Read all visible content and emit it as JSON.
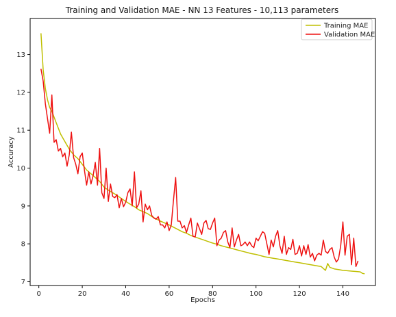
{
  "chart_data": {
    "type": "line",
    "title": "Training and Validation MAE - NN 13 Features - 10,113 parameters",
    "xlabel": "Epochs",
    "ylabel": "Accuracy",
    "xlim": [
      -4,
      155
    ],
    "ylim": [
      6.9,
      13.95
    ],
    "xticks": [
      0,
      20,
      40,
      60,
      80,
      100,
      120,
      140
    ],
    "yticks": [
      7,
      8,
      9,
      10,
      11,
      12,
      13
    ],
    "grid": false,
    "legend_position": "top-right",
    "series": [
      {
        "name": "Training MAE",
        "color": "#bfbf00",
        "points": [
          [
            1,
            13.56
          ],
          [
            2,
            12.6
          ],
          [
            3,
            12.1
          ],
          [
            4,
            11.8
          ],
          [
            5,
            11.6
          ],
          [
            6,
            11.5
          ],
          [
            8,
            11.2
          ],
          [
            10,
            10.9
          ],
          [
            12,
            10.7
          ],
          [
            14,
            10.5
          ],
          [
            16,
            10.35
          ],
          [
            18,
            10.25
          ],
          [
            20,
            10.1
          ],
          [
            22,
            9.95
          ],
          [
            24,
            9.85
          ],
          [
            26,
            9.75
          ],
          [
            28,
            9.65
          ],
          [
            30,
            9.5
          ],
          [
            32,
            9.42
          ],
          [
            34,
            9.35
          ],
          [
            36,
            9.28
          ],
          [
            38,
            9.2
          ],
          [
            40,
            9.12
          ],
          [
            42,
            9.05
          ],
          [
            44,
            8.98
          ],
          [
            46,
            8.9
          ],
          [
            48,
            8.85
          ],
          [
            50,
            8.8
          ],
          [
            52,
            8.72
          ],
          [
            54,
            8.66
          ],
          [
            56,
            8.6
          ],
          [
            58,
            8.55
          ],
          [
            60,
            8.5
          ],
          [
            62,
            8.44
          ],
          [
            64,
            8.38
          ],
          [
            66,
            8.32
          ],
          [
            68,
            8.28
          ],
          [
            70,
            8.22
          ],
          [
            72,
            8.18
          ],
          [
            74,
            8.14
          ],
          [
            76,
            8.1
          ],
          [
            78,
            8.06
          ],
          [
            80,
            8.02
          ],
          [
            82,
            7.99
          ],
          [
            84,
            7.95
          ],
          [
            86,
            7.92
          ],
          [
            88,
            7.89
          ],
          [
            90,
            7.86
          ],
          [
            92,
            7.83
          ],
          [
            94,
            7.8
          ],
          [
            96,
            7.77
          ],
          [
            98,
            7.74
          ],
          [
            100,
            7.72
          ],
          [
            102,
            7.69
          ],
          [
            104,
            7.66
          ],
          [
            106,
            7.64
          ],
          [
            108,
            7.62
          ],
          [
            110,
            7.6
          ],
          [
            112,
            7.58
          ],
          [
            114,
            7.56
          ],
          [
            116,
            7.54
          ],
          [
            118,
            7.52
          ],
          [
            120,
            7.5
          ],
          [
            122,
            7.48
          ],
          [
            124,
            7.46
          ],
          [
            126,
            7.44
          ],
          [
            128,
            7.42
          ],
          [
            130,
            7.4
          ],
          [
            132,
            7.3
          ],
          [
            133,
            7.48
          ],
          [
            134,
            7.38
          ],
          [
            136,
            7.34
          ],
          [
            138,
            7.32
          ],
          [
            140,
            7.3
          ],
          [
            142,
            7.29
          ],
          [
            144,
            7.28
          ],
          [
            146,
            7.27
          ],
          [
            148,
            7.26
          ],
          [
            149,
            7.22
          ],
          [
            150,
            7.21
          ]
        ]
      },
      {
        "name": "Validation MAE",
        "color": "#ee1111",
        "points": [
          [
            1,
            12.62
          ],
          [
            2,
            12.3
          ],
          [
            3,
            11.7
          ],
          [
            4,
            11.3
          ],
          [
            5,
            10.92
          ],
          [
            6,
            11.93
          ],
          [
            7,
            10.68
          ],
          [
            8,
            10.75
          ],
          [
            9,
            10.45
          ],
          [
            10,
            10.52
          ],
          [
            11,
            10.3
          ],
          [
            12,
            10.4
          ],
          [
            13,
            10.05
          ],
          [
            14,
            10.35
          ],
          [
            15,
            10.95
          ],
          [
            16,
            10.28
          ],
          [
            17,
            10.1
          ],
          [
            18,
            9.85
          ],
          [
            19,
            10.3
          ],
          [
            20,
            10.4
          ],
          [
            21,
            9.95
          ],
          [
            22,
            9.55
          ],
          [
            23,
            9.9
          ],
          [
            24,
            9.58
          ],
          [
            25,
            9.8
          ],
          [
            26,
            10.15
          ],
          [
            27,
            9.55
          ],
          [
            28,
            10.52
          ],
          [
            29,
            9.35
          ],
          [
            30,
            9.2
          ],
          [
            31,
            10.0
          ],
          [
            32,
            9.12
          ],
          [
            33,
            9.58
          ],
          [
            34,
            9.25
          ],
          [
            35,
            9.22
          ],
          [
            36,
            9.3
          ],
          [
            37,
            8.95
          ],
          [
            38,
            9.2
          ],
          [
            39,
            8.98
          ],
          [
            40,
            9.1
          ],
          [
            41,
            9.35
          ],
          [
            42,
            9.45
          ],
          [
            43,
            9.0
          ],
          [
            44,
            9.9
          ],
          [
            45,
            8.95
          ],
          [
            46,
            9.05
          ],
          [
            47,
            9.4
          ],
          [
            48,
            8.58
          ],
          [
            49,
            9.05
          ],
          [
            50,
            8.9
          ],
          [
            51,
            9.0
          ],
          [
            52,
            8.75
          ],
          [
            53,
            8.68
          ],
          [
            54,
            8.65
          ],
          [
            55,
            8.72
          ],
          [
            56,
            8.5
          ],
          [
            57,
            8.5
          ],
          [
            58,
            8.42
          ],
          [
            59,
            8.58
          ],
          [
            60,
            8.35
          ],
          [
            61,
            8.5
          ],
          [
            62,
            9.15
          ],
          [
            63,
            9.75
          ],
          [
            64,
            8.6
          ],
          [
            65,
            8.6
          ],
          [
            66,
            8.42
          ],
          [
            67,
            8.48
          ],
          [
            68,
            8.3
          ],
          [
            69,
            8.5
          ],
          [
            70,
            8.68
          ],
          [
            71,
            8.2
          ],
          [
            72,
            8.18
          ],
          [
            73,
            8.55
          ],
          [
            74,
            8.4
          ],
          [
            75,
            8.25
          ],
          [
            76,
            8.55
          ],
          [
            77,
            8.62
          ],
          [
            78,
            8.4
          ],
          [
            79,
            8.38
          ],
          [
            80,
            8.55
          ],
          [
            81,
            8.68
          ],
          [
            82,
            7.95
          ],
          [
            83,
            8.1
          ],
          [
            84,
            8.15
          ],
          [
            85,
            8.3
          ],
          [
            86,
            8.35
          ],
          [
            87,
            8.05
          ],
          [
            88,
            7.9
          ],
          [
            89,
            8.42
          ],
          [
            90,
            7.92
          ],
          [
            91,
            8.1
          ],
          [
            92,
            8.25
          ],
          [
            93,
            7.95
          ],
          [
            94,
            7.98
          ],
          [
            95,
            8.05
          ],
          [
            96,
            7.95
          ],
          [
            97,
            8.05
          ],
          [
            98,
            7.95
          ],
          [
            99,
            7.9
          ],
          [
            100,
            8.15
          ],
          [
            101,
            8.08
          ],
          [
            102,
            8.2
          ],
          [
            103,
            8.32
          ],
          [
            104,
            8.28
          ],
          [
            105,
            8.0
          ],
          [
            106,
            7.72
          ],
          [
            107,
            8.1
          ],
          [
            108,
            7.92
          ],
          [
            109,
            8.2
          ],
          [
            110,
            8.35
          ],
          [
            111,
            7.95
          ],
          [
            112,
            7.75
          ],
          [
            113,
            8.2
          ],
          [
            114,
            7.72
          ],
          [
            115,
            7.9
          ],
          [
            116,
            7.85
          ],
          [
            117,
            8.12
          ],
          [
            118,
            7.72
          ],
          [
            119,
            7.75
          ],
          [
            120,
            7.95
          ],
          [
            121,
            7.68
          ],
          [
            122,
            7.95
          ],
          [
            123,
            7.72
          ],
          [
            124,
            7.98
          ],
          [
            125,
            7.65
          ],
          [
            126,
            7.75
          ],
          [
            127,
            7.55
          ],
          [
            128,
            7.7
          ],
          [
            129,
            7.75
          ],
          [
            130,
            7.7
          ],
          [
            131,
            8.1
          ],
          [
            132,
            7.8
          ],
          [
            133,
            7.75
          ],
          [
            134,
            7.85
          ],
          [
            135,
            7.9
          ],
          [
            136,
            7.65
          ],
          [
            137,
            7.52
          ],
          [
            138,
            7.6
          ],
          [
            139,
            7.95
          ],
          [
            140,
            8.58
          ],
          [
            141,
            7.7
          ],
          [
            142,
            8.2
          ],
          [
            143,
            8.25
          ],
          [
            144,
            7.45
          ],
          [
            145,
            8.15
          ],
          [
            146,
            7.4
          ],
          [
            147,
            7.55
          ]
        ]
      }
    ]
  }
}
